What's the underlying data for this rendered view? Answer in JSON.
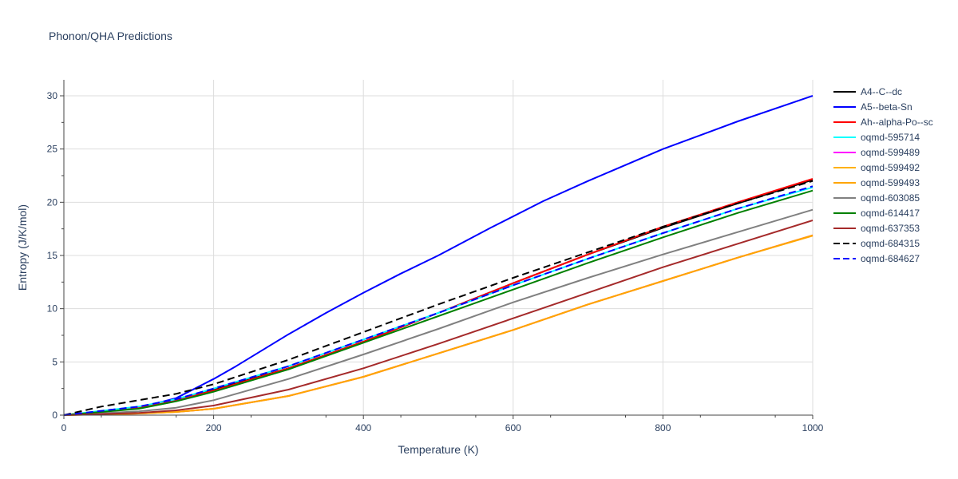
{
  "chart_data": {
    "type": "line",
    "title": "Phonon/QHA Predictions",
    "xlabel": "Temperature (K)",
    "ylabel": "Entropy (J/K/mol)",
    "xlim": [
      0,
      1000
    ],
    "ylim": [
      0,
      31.5
    ],
    "xticks": [
      0,
      200,
      400,
      600,
      800,
      1000
    ],
    "yticks": [
      0,
      5,
      10,
      15,
      20,
      25,
      30
    ],
    "grid": true,
    "legend_position": "right",
    "series": [
      {
        "name": "A4--C--dc",
        "color": "#000000",
        "dash": "solid",
        "x": [
          0,
          100,
          150,
          200,
          300,
          400,
          500,
          600,
          700,
          800,
          900,
          1000
        ],
        "y": [
          0,
          0.7,
          1.5,
          2.4,
          4.4,
          6.9,
          9.6,
          12.4,
          15.1,
          17.6,
          19.9,
          22.1
        ]
      },
      {
        "name": "A5--beta-Sn",
        "color": "#0000ff",
        "dash": "solid",
        "x": [
          0,
          100,
          150,
          200,
          230,
          300,
          350,
          400,
          450,
          500,
          570,
          640,
          700,
          800,
          900,
          1000
        ],
        "y": [
          0,
          0.7,
          1.6,
          3.4,
          4.6,
          7.6,
          9.6,
          11.5,
          13.3,
          15.0,
          17.6,
          20.1,
          22.0,
          25.0,
          27.6,
          30.0
        ]
      },
      {
        "name": "Ah--alpha-Po--sc",
        "color": "#ff0000",
        "dash": "solid",
        "x": [
          0,
          100,
          150,
          200,
          300,
          400,
          500,
          600,
          700,
          800,
          900,
          1000
        ],
        "y": [
          0,
          0.7,
          1.4,
          2.3,
          4.4,
          6.9,
          9.6,
          12.4,
          15.1,
          17.7,
          20.0,
          22.2
        ]
      },
      {
        "name": "oqmd-595714",
        "color": "#00ffff",
        "dash": "solid",
        "x": [
          0,
          100,
          150,
          200,
          300,
          400,
          500,
          600,
          700,
          800,
          900,
          1000
        ],
        "y": [
          0,
          0.8,
          1.5,
          2.5,
          4.6,
          7.1,
          9.6,
          12.2,
          14.7,
          17.1,
          19.4,
          21.4
        ]
      },
      {
        "name": "oqmd-599489",
        "color": "#ff00ff",
        "dash": "solid",
        "x": [
          0,
          100,
          150,
          200,
          300,
          400,
          500,
          600,
          700,
          800,
          900,
          1000
        ],
        "y": [
          0,
          0.15,
          0.3,
          0.6,
          1.8,
          3.6,
          5.8,
          8.0,
          10.4,
          12.6,
          14.8,
          16.9
        ]
      },
      {
        "name": "oqmd-599492",
        "color": "#ffb000",
        "dash": "solid",
        "x": [
          0,
          100,
          150,
          200,
          300,
          400,
          500,
          600,
          700,
          800,
          900,
          1000
        ],
        "y": [
          0,
          0.15,
          0.3,
          0.6,
          1.8,
          3.6,
          5.8,
          8.0,
          10.4,
          12.6,
          14.8,
          16.9
        ]
      },
      {
        "name": "oqmd-599493",
        "color": "#ffa500",
        "dash": "solid",
        "x": [
          0,
          100,
          150,
          200,
          300,
          400,
          500,
          600,
          700,
          800,
          900,
          1000
        ],
        "y": [
          0,
          0.15,
          0.3,
          0.6,
          1.8,
          3.6,
          5.8,
          8.0,
          10.4,
          12.6,
          14.8,
          16.85
        ]
      },
      {
        "name": "oqmd-603085",
        "color": "#808080",
        "dash": "solid",
        "x": [
          0,
          100,
          150,
          200,
          300,
          400,
          500,
          600,
          700,
          800,
          900,
          1000
        ],
        "y": [
          0,
          0.35,
          0.7,
          1.4,
          3.4,
          5.7,
          8.1,
          10.6,
          12.9,
          15.1,
          17.2,
          19.3
        ]
      },
      {
        "name": "oqmd-614417",
        "color": "#008000",
        "dash": "solid",
        "x": [
          0,
          100,
          150,
          200,
          300,
          400,
          500,
          600,
          700,
          800,
          900,
          1000
        ],
        "y": [
          0,
          0.6,
          1.3,
          2.2,
          4.3,
          6.8,
          9.3,
          11.8,
          14.3,
          16.7,
          19.0,
          21.1
        ]
      },
      {
        "name": "oqmd-637353",
        "color": "#a52a2a",
        "dash": "solid",
        "x": [
          0,
          100,
          150,
          200,
          300,
          400,
          500,
          600,
          700,
          800,
          900,
          1000
        ],
        "y": [
          0,
          0.2,
          0.45,
          0.9,
          2.4,
          4.4,
          6.7,
          9.1,
          11.5,
          13.9,
          16.1,
          18.3
        ]
      },
      {
        "name": "oqmd-684315",
        "color": "#000000",
        "dash": "dash",
        "x": [
          0,
          50,
          100,
          150,
          200,
          300,
          400,
          500,
          600,
          700,
          800,
          900,
          1000
        ],
        "y": [
          0,
          0.8,
          1.4,
          2.0,
          2.9,
          5.2,
          7.8,
          10.4,
          12.9,
          15.3,
          17.7,
          19.9,
          22.0
        ]
      },
      {
        "name": "oqmd-684627",
        "color": "#0000ff",
        "dash": "dash",
        "x": [
          0,
          100,
          150,
          200,
          300,
          400,
          500,
          600,
          700,
          800,
          900,
          1000
        ],
        "y": [
          0,
          0.8,
          1.5,
          2.5,
          4.6,
          7.1,
          9.6,
          12.2,
          14.7,
          17.1,
          19.4,
          21.5
        ]
      }
    ]
  }
}
